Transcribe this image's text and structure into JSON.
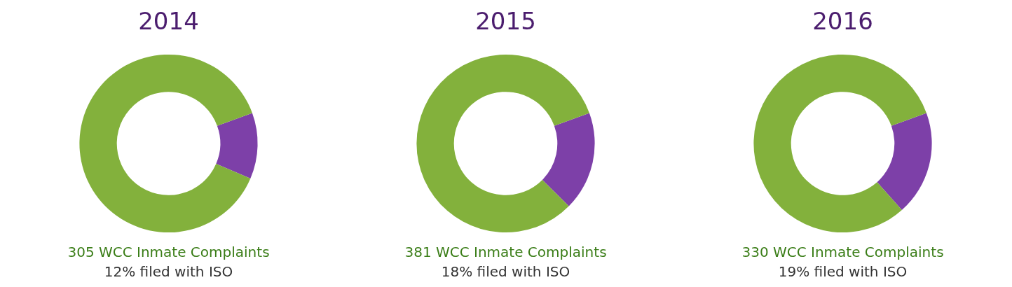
{
  "chart_data": [
    {
      "type": "donut",
      "title": "2014",
      "categories": [
        null,
        null
      ],
      "values": [
        12,
        88
      ],
      "colors": [
        "#7d40a8",
        "#83b13c"
      ],
      "annotations": [
        "305 WCC Inmate Complaints",
        "12% filed with ISO"
      ]
    },
    {
      "type": "donut",
      "title": "2015",
      "categories": [
        null,
        null
      ],
      "values": [
        18,
        82
      ],
      "colors": [
        "#7d40a8",
        "#83b13c"
      ],
      "annotations": [
        "381 WCC Inmate Complaints",
        "18% filed with ISO"
      ]
    },
    {
      "type": "donut",
      "title": "2016",
      "categories": [
        null,
        null
      ],
      "values": [
        19,
        81
      ],
      "colors": [
        "#7d40a8",
        "#83b13c"
      ],
      "annotations": [
        "330 WCC Inmate Complaints",
        "19% filed with ISO"
      ]
    }
  ]
}
